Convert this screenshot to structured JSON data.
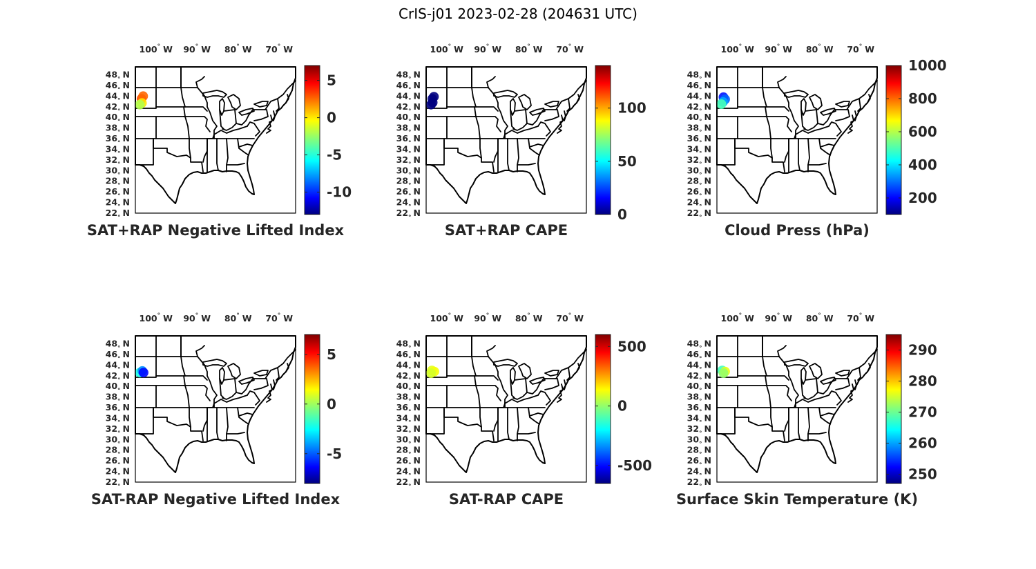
{
  "figure_title": "CrIS-j01 2023-02-28 (204631 UTC)",
  "lon_labels": [
    "100",
    "90",
    "80",
    "70"
  ],
  "lon_hemisphere": "W",
  "lat_labels": [
    "48",
    "46",
    "44",
    "42",
    "40",
    "38",
    "36",
    "34",
    "32",
    "30",
    "28",
    "26",
    "24",
    "22"
  ],
  "lat_hemisphere": "N",
  "degree_symbol": "°",
  "colormap": "jet",
  "panels": [
    {
      "title": "SAT+RAP Negative Lifted Index",
      "colorbar": {
        "min": -13,
        "max": 7,
        "ticks": [
          "5",
          "0",
          "-5",
          "-10"
        ],
        "tick_values": [
          5,
          0,
          -5,
          -10
        ]
      },
      "observations": [
        {
          "lon": -103.5,
          "lat": 43.5,
          "value": 3
        },
        {
          "lon": -103.1,
          "lat": 44.0,
          "value": 2.5
        },
        {
          "lon": -103.4,
          "lat": 42.7,
          "value": 0
        },
        {
          "lon": -103.9,
          "lat": 42.4,
          "value": -2
        }
      ]
    },
    {
      "title": "SAT+RAP CAPE",
      "colorbar": {
        "min": 0,
        "max": 140,
        "ticks": [
          "100",
          "50",
          "0"
        ],
        "tick_values": [
          100,
          50,
          0
        ]
      },
      "observations": [
        {
          "lon": -103.5,
          "lat": 43.5,
          "value": 0
        },
        {
          "lon": -103.1,
          "lat": 43.9,
          "value": 0
        },
        {
          "lon": -103.4,
          "lat": 42.8,
          "value": 0
        },
        {
          "lon": -103.8,
          "lat": 42.4,
          "value": 0
        }
      ]
    },
    {
      "title": "Cloud Press (hPa)",
      "colorbar": {
        "min": 100,
        "max": 1000,
        "ticks": [
          "1000",
          "800",
          "600",
          "400",
          "200"
        ],
        "tick_values": [
          1000,
          800,
          600,
          400,
          200
        ]
      },
      "observations": [
        {
          "lon": -103.4,
          "lat": 43.8,
          "value": 230
        },
        {
          "lon": -103.0,
          "lat": 43.4,
          "value": 300
        },
        {
          "lon": -103.5,
          "lat": 42.9,
          "value": 360
        },
        {
          "lon": -103.9,
          "lat": 42.5,
          "value": 500
        }
      ]
    },
    {
      "title": "SAT-RAP Negative Lifted Index",
      "colorbar": {
        "min": -8,
        "max": 7,
        "ticks": [
          "5",
          "0",
          "-5"
        ],
        "tick_values": [
          5,
          0,
          -5
        ]
      },
      "observations": [
        {
          "lon": -103.9,
          "lat": 42.6,
          "value": -2
        },
        {
          "lon": -103.3,
          "lat": 42.9,
          "value": -4
        },
        {
          "lon": -103.0,
          "lat": 42.6,
          "value": -6
        }
      ]
    },
    {
      "title": "SAT-RAP CAPE",
      "colorbar": {
        "min": -650,
        "max": 600,
        "ticks": [
          "500",
          "0",
          "-500"
        ],
        "tick_values": [
          500,
          0,
          -500
        ]
      },
      "observations": [
        {
          "lon": -103.6,
          "lat": 43.0,
          "value": 100
        },
        {
          "lon": -103.0,
          "lat": 42.8,
          "value": 120
        },
        {
          "lon": -103.8,
          "lat": 42.5,
          "value": 80
        }
      ]
    },
    {
      "title": "Surface Skin Temperature (K)",
      "colorbar": {
        "min": 247,
        "max": 295,
        "ticks": [
          "290",
          "280",
          "270",
          "260",
          "250"
        ],
        "tick_values": [
          290,
          280,
          270,
          260,
          250
        ]
      },
      "observations": [
        {
          "lon": -103.7,
          "lat": 43.0,
          "value": 268
        },
        {
          "lon": -103.0,
          "lat": 42.8,
          "value": 276
        },
        {
          "lon": -103.4,
          "lat": 42.5,
          "value": 272
        }
      ]
    }
  ]
}
